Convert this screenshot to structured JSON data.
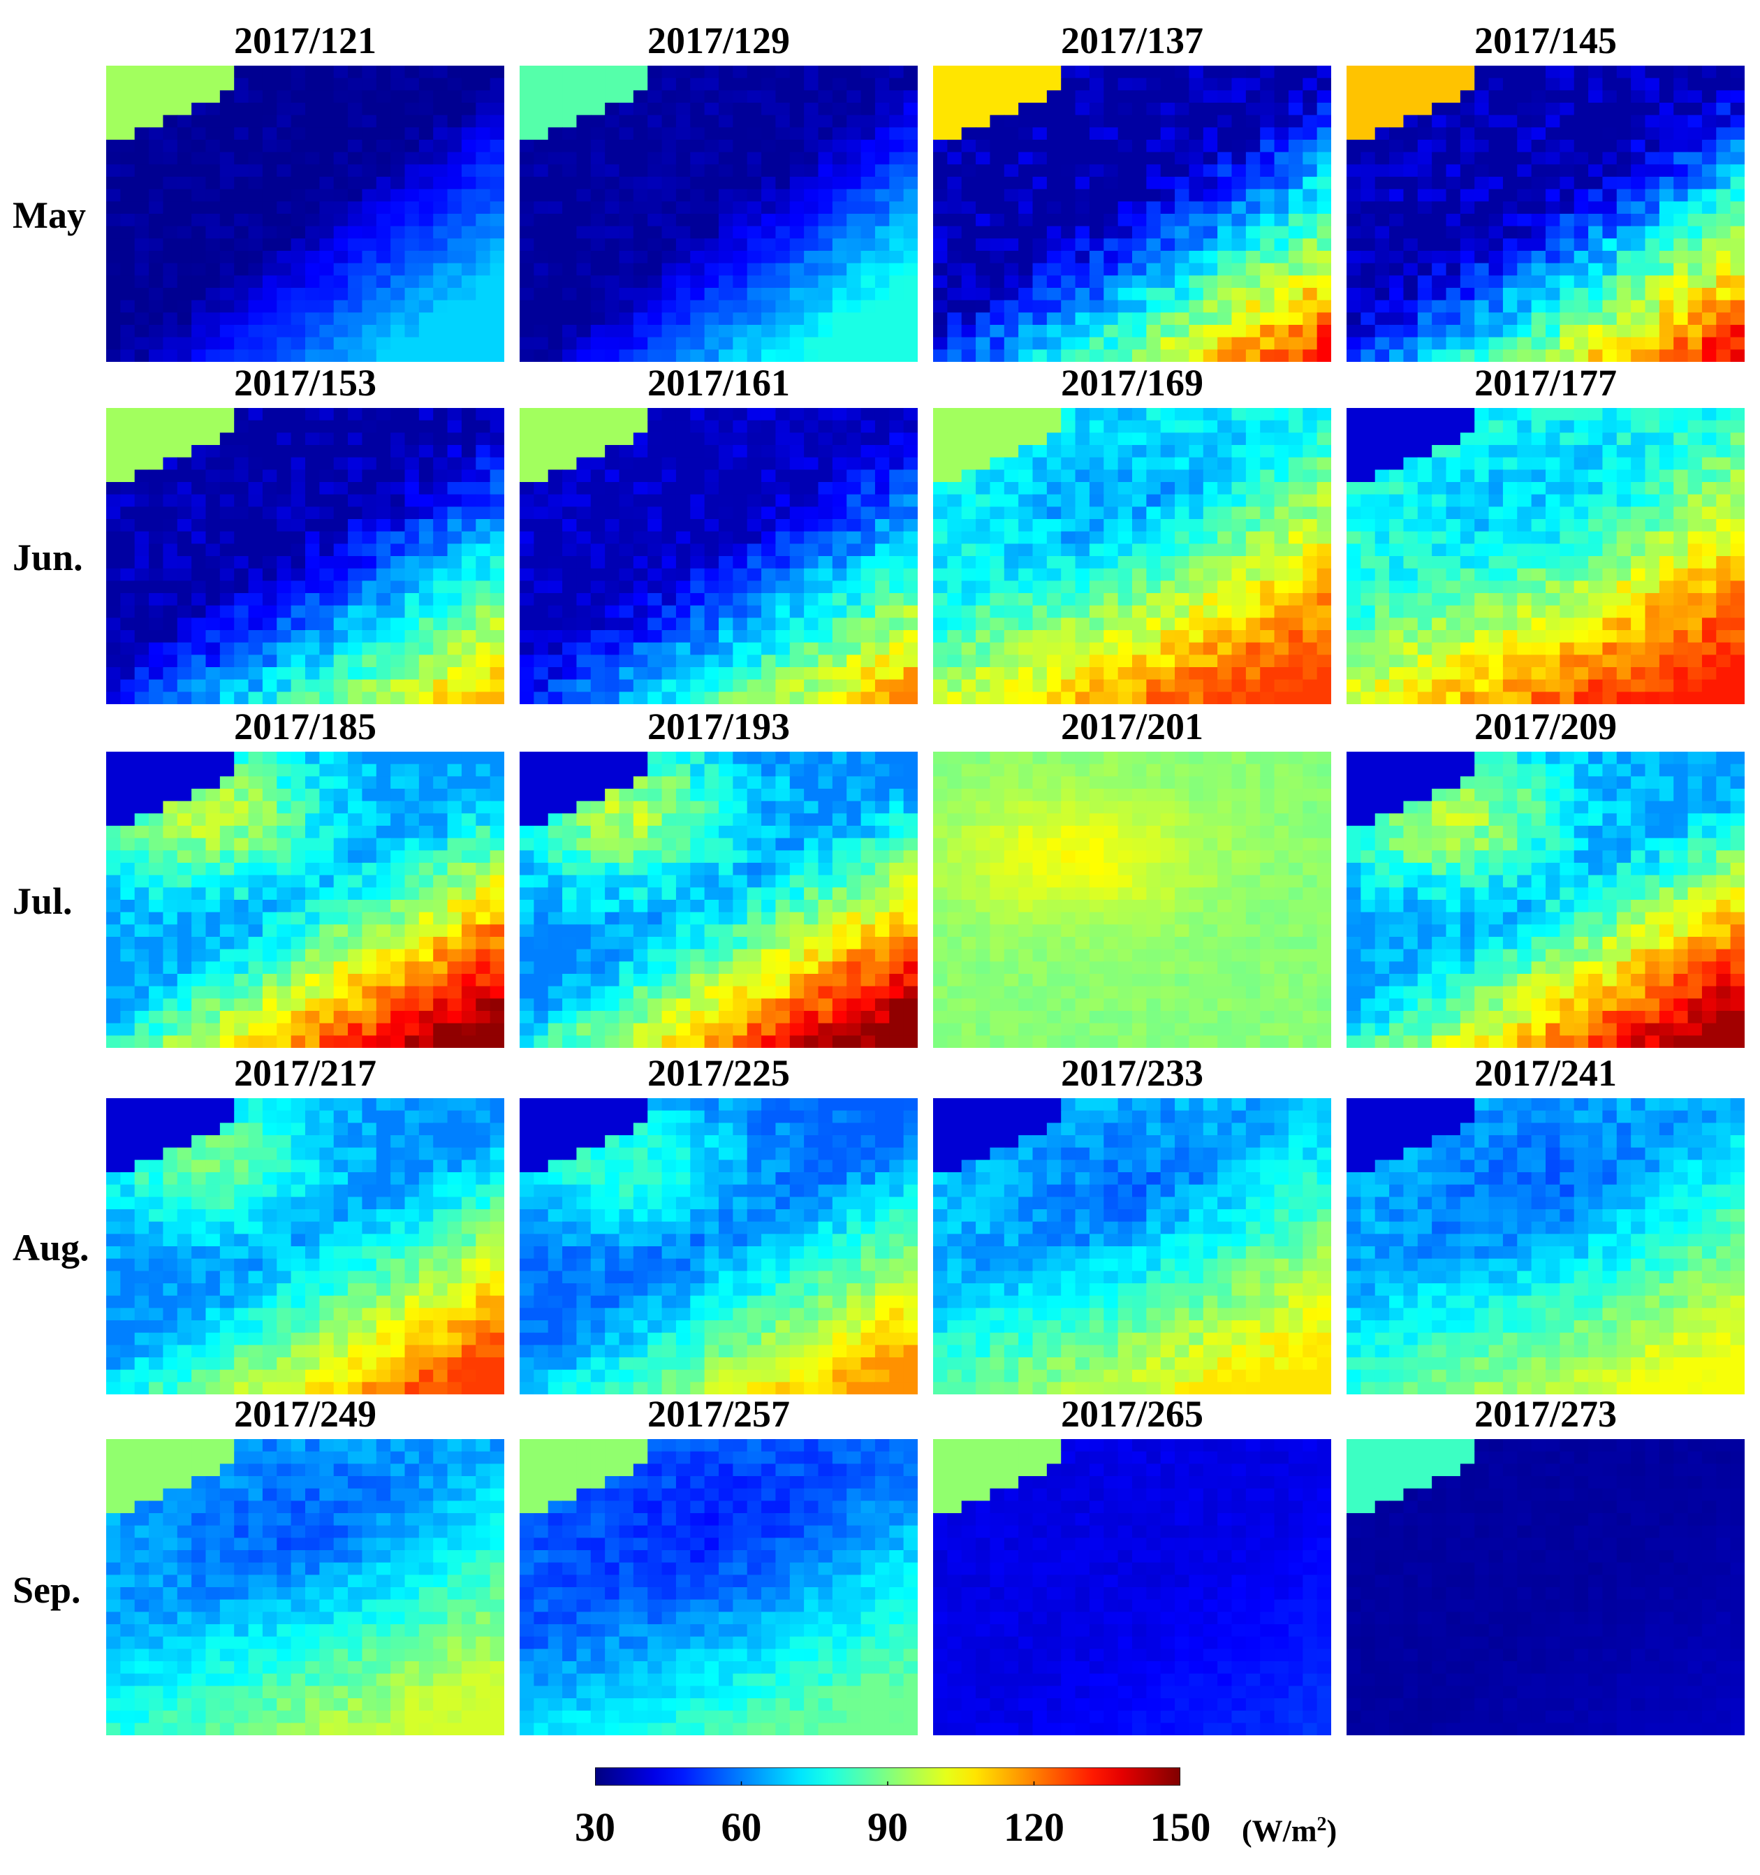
{
  "chart_data": {
    "type": "heatmap",
    "title": "",
    "rows": [
      "May",
      "Jun.",
      "Jul.",
      "Aug.",
      "Sep."
    ],
    "panels": [
      {
        "row": 0,
        "col": 0,
        "title": "2017/121",
        "pattern": "mild",
        "min": 32,
        "max": 70,
        "corner": "low",
        "corner_val": 94
      },
      {
        "row": 0,
        "col": 1,
        "title": "2017/129",
        "pattern": "mild",
        "min": 33,
        "max": 78,
        "corner": "low",
        "corner_val": 85
      },
      {
        "row": 0,
        "col": 2,
        "title": "2017/137",
        "pattern": "warm",
        "min": 34,
        "max": 135,
        "corner": "low",
        "corner_val": 108
      },
      {
        "row": 0,
        "col": 3,
        "title": "2017/145",
        "pattern": "warm",
        "min": 34,
        "max": 140,
        "corner": "low",
        "corner_val": 112
      },
      {
        "row": 1,
        "col": 0,
        "title": "2017/153",
        "pattern": "warm",
        "min": 34,
        "max": 118,
        "corner": "low",
        "corner_val": 94
      },
      {
        "row": 1,
        "col": 1,
        "title": "2017/161",
        "pattern": "warm",
        "min": 36,
        "max": 120,
        "corner": "low",
        "corner_val": 94
      },
      {
        "row": 1,
        "col": 2,
        "title": "2017/169",
        "pattern": "spread",
        "min": 48,
        "max": 128,
        "corner": "low",
        "corner_val": 94
      },
      {
        "row": 1,
        "col": 3,
        "title": "2017/177",
        "pattern": "spread",
        "min": 52,
        "max": 132,
        "corner": "high",
        "corner_val": 40
      },
      {
        "row": 2,
        "col": 0,
        "title": "2017/185",
        "pattern": "hot",
        "min": 62,
        "max": 148,
        "corner": "high",
        "corner_val": 40
      },
      {
        "row": 2,
        "col": 1,
        "title": "2017/193",
        "pattern": "hot",
        "min": 60,
        "max": 148,
        "corner": "high",
        "corner_val": 40
      },
      {
        "row": 2,
        "col": 2,
        "title": "2017/201",
        "pattern": "uniform",
        "min": 82,
        "max": 108,
        "corner": "none",
        "corner_val": 0
      },
      {
        "row": 2,
        "col": 3,
        "title": "2017/209",
        "pattern": "hot",
        "min": 62,
        "max": 146,
        "corner": "high",
        "corner_val": 40
      },
      {
        "row": 3,
        "col": 0,
        "title": "2017/217",
        "pattern": "hot",
        "min": 60,
        "max": 128,
        "corner": "high",
        "corner_val": 40
      },
      {
        "row": 3,
        "col": 1,
        "title": "2017/225",
        "pattern": "hot",
        "min": 56,
        "max": 118,
        "corner": "high",
        "corner_val": 40
      },
      {
        "row": 3,
        "col": 2,
        "title": "2017/233",
        "pattern": "spread",
        "min": 46,
        "max": 108,
        "corner": "high",
        "corner_val": 40
      },
      {
        "row": 3,
        "col": 3,
        "title": "2017/241",
        "pattern": "spread",
        "min": 46,
        "max": 104,
        "corner": "high",
        "corner_val": 40
      },
      {
        "row": 4,
        "col": 0,
        "title": "2017/249",
        "pattern": "spread",
        "min": 46,
        "max": 100,
        "corner": "low",
        "corner_val": 92
      },
      {
        "row": 4,
        "col": 1,
        "title": "2017/257",
        "pattern": "spread",
        "min": 40,
        "max": 88,
        "corner": "low",
        "corner_val": 92
      },
      {
        "row": 4,
        "col": 2,
        "title": "2017/265",
        "pattern": "flat",
        "min": 36,
        "max": 56,
        "corner": "low",
        "corner_val": 92
      },
      {
        "row": 4,
        "col": 3,
        "title": "2017/273",
        "pattern": "flat",
        "min": 31,
        "max": 40,
        "corner": "low",
        "corner_val": 82
      }
    ],
    "colorbar": {
      "colormap": "jet",
      "range": [
        30,
        150
      ],
      "ticks": [
        30,
        60,
        90,
        120,
        150
      ],
      "tick_labels": [
        "30",
        "60",
        "90",
        "120",
        "150"
      ],
      "unit_base": "(W/m",
      "unit_sup": "2",
      "unit_close": ")"
    }
  },
  "colors": {
    "low_corner": "#66f0a0",
    "background": "#ffffff"
  }
}
